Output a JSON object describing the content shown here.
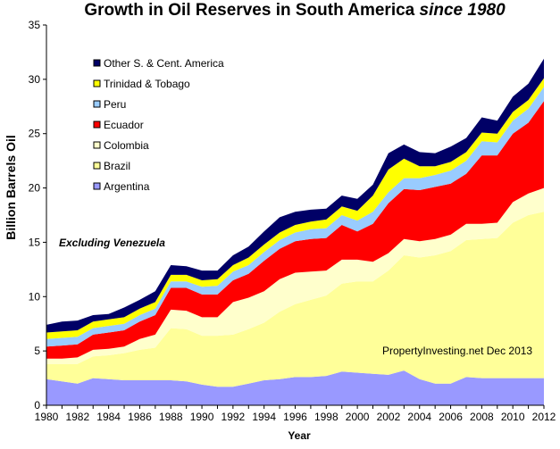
{
  "chart_data": {
    "type": "area",
    "stacked": true,
    "title": "Growth in Oil Reserves in South America",
    "title_suffix": "since 1980",
    "xlabel": "Year",
    "ylabel": "Billion Barrels Oil",
    "xlim": [
      1980,
      2012
    ],
    "ylim": [
      0,
      35
    ],
    "x_ticks": [
      "1980",
      "1982",
      "1984",
      "1986",
      "1988",
      "1990",
      "1992",
      "1994",
      "1996",
      "1998",
      "2000",
      "2002",
      "2004",
      "2006",
      "2008",
      "2010",
      "2012"
    ],
    "y_ticks": [
      "0",
      "5",
      "10",
      "15",
      "20",
      "25",
      "30",
      "35"
    ],
    "legend_position": "upper-left",
    "annotations": [
      "Excluding Venezuela",
      "PropertyInvesting.net Dec 2013"
    ],
    "x": [
      1980,
      1981,
      1982,
      1983,
      1984,
      1985,
      1986,
      1987,
      1988,
      1989,
      1990,
      1991,
      1992,
      1993,
      1994,
      1995,
      1996,
      1997,
      1998,
      1999,
      2000,
      2001,
      2002,
      2003,
      2004,
      2005,
      2006,
      2007,
      2008,
      2009,
      2010,
      2011,
      2012
    ],
    "series": [
      {
        "name": "Argentina",
        "color": "#9999ff",
        "values": [
          2.4,
          2.2,
          2.0,
          2.5,
          2.4,
          2.3,
          2.3,
          2.3,
          2.3,
          2.2,
          1.9,
          1.7,
          1.7,
          2.0,
          2.3,
          2.4,
          2.6,
          2.6,
          2.7,
          3.1,
          3.0,
          2.9,
          2.8,
          3.2,
          2.4,
          2.0,
          2.0,
          2.6,
          2.5,
          2.5,
          2.5,
          2.5,
          2.5
        ]
      },
      {
        "name": "Brazil",
        "color": "#ffff99",
        "values": [
          1.4,
          1.6,
          1.8,
          2.0,
          2.2,
          2.5,
          2.8,
          3.0,
          4.8,
          4.8,
          4.5,
          4.7,
          4.8,
          5.0,
          5.3,
          6.2,
          6.7,
          7.1,
          7.4,
          8.1,
          8.4,
          8.5,
          9.6,
          10.6,
          11.2,
          11.8,
          12.2,
          12.6,
          12.8,
          12.9,
          14.3,
          15.0,
          15.3
        ]
      },
      {
        "name": "Colombia",
        "color": "#ffffcc",
        "values": [
          0.5,
          0.5,
          0.6,
          0.6,
          0.6,
          0.6,
          1.0,
          1.2,
          1.7,
          1.7,
          1.7,
          1.7,
          3.0,
          2.9,
          2.9,
          3.0,
          2.9,
          2.6,
          2.3,
          2.2,
          2.0,
          1.8,
          1.6,
          1.5,
          1.5,
          1.5,
          1.5,
          1.5,
          1.4,
          1.4,
          1.9,
          2.0,
          2.2
        ]
      },
      {
        "name": "Ecuador",
        "color": "#ff0000",
        "values": [
          1.1,
          1.2,
          1.2,
          1.4,
          1.5,
          1.5,
          1.6,
          1.8,
          2.0,
          2.1,
          2.1,
          2.1,
          2.0,
          2.2,
          2.8,
          2.8,
          2.9,
          3.0,
          3.0,
          3.2,
          2.6,
          3.5,
          4.6,
          4.6,
          4.7,
          4.8,
          4.7,
          4.6,
          6.3,
          6.2,
          6.3,
          6.5,
          8.0
        ]
      },
      {
        "name": "Peru",
        "color": "#99ccff",
        "values": [
          0.7,
          0.7,
          0.7,
          0.6,
          0.6,
          0.6,
          0.6,
          0.6,
          0.6,
          0.6,
          0.7,
          0.8,
          0.8,
          0.8,
          0.8,
          0.8,
          0.8,
          0.9,
          0.9,
          0.9,
          1.0,
          1.1,
          1.0,
          1.0,
          1.1,
          1.1,
          1.2,
          1.2,
          1.3,
          1.2,
          1.2,
          1.3,
          1.3
        ]
      },
      {
        "name": "Trinidad & Tobago",
        "color": "#ffff00",
        "values": [
          0.6,
          0.6,
          0.6,
          0.6,
          0.6,
          0.6,
          0.6,
          0.6,
          0.6,
          0.6,
          0.6,
          0.6,
          0.6,
          0.7,
          0.7,
          0.7,
          0.7,
          0.7,
          0.8,
          0.8,
          0.9,
          1.5,
          2.1,
          1.8,
          1.1,
          0.8,
          0.8,
          0.8,
          0.8,
          0.8,
          0.8,
          0.8,
          0.8
        ]
      },
      {
        "name": "Other S. & Cent. America",
        "color": "#000066",
        "values": [
          0.7,
          0.9,
          0.9,
          0.6,
          0.5,
          0.9,
          0.8,
          1.0,
          0.9,
          0.8,
          0.9,
          0.8,
          0.9,
          1.0,
          1.2,
          1.4,
          1.2,
          1.1,
          1.0,
          1.0,
          1.1,
          1.0,
          1.5,
          1.3,
          1.3,
          1.2,
          1.4,
          1.3,
          1.4,
          1.2,
          1.4,
          1.5,
          1.8
        ]
      }
    ]
  }
}
